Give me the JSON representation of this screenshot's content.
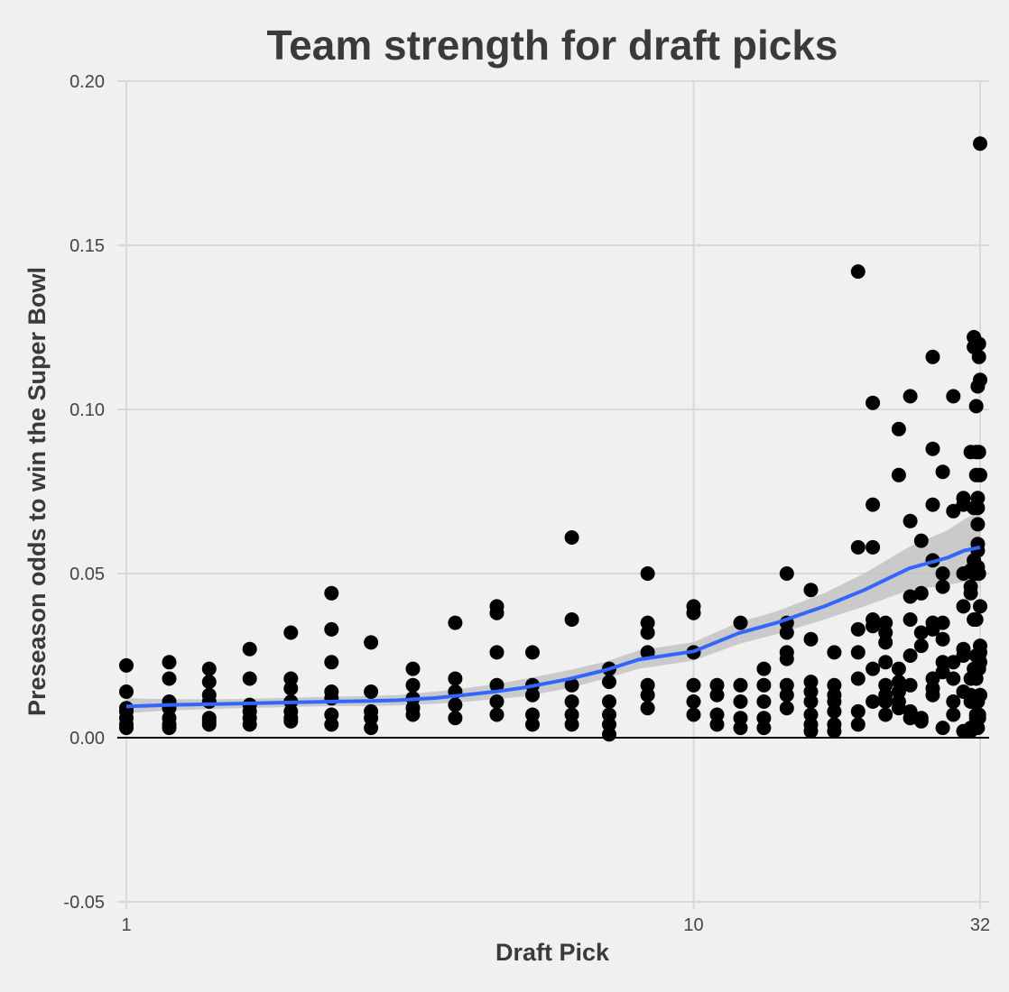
{
  "chart_data": {
    "type": "scatter",
    "title": "Team strength for draft picks",
    "xlabel": "Draft Pick",
    "ylabel": "Preseason odds to win the Super Bowl",
    "x_scale": "log",
    "xlim": [
      1,
      32
    ],
    "ylim": [
      -0.05,
      0.2
    ],
    "x_ticks": [
      1,
      10,
      32
    ],
    "y_ticks": [
      -0.05,
      0.0,
      0.05,
      0.1,
      0.15,
      0.2
    ],
    "y_tick_labels": [
      "-0.05",
      "0.00",
      "0.05",
      "0.10",
      "0.15",
      "0.20"
    ],
    "grid": true,
    "hline_y": 0,
    "colors": {
      "points": "#000000",
      "smooth": "#3366ff",
      "band": "#bdbdbd",
      "background": "#f0f0f0"
    },
    "points": [
      [
        1,
        0.022
      ],
      [
        1,
        0.014
      ],
      [
        1,
        0.009
      ],
      [
        1,
        0.008
      ],
      [
        1,
        0.006
      ],
      [
        1,
        0.004
      ],
      [
        1,
        0.003
      ],
      [
        1.19,
        0.023
      ],
      [
        1.19,
        0.018
      ],
      [
        1.19,
        0.011
      ],
      [
        1.19,
        0.009
      ],
      [
        1.19,
        0.006
      ],
      [
        1.19,
        0.004
      ],
      [
        1.19,
        0.003
      ],
      [
        1.4,
        0.021
      ],
      [
        1.4,
        0.017
      ],
      [
        1.4,
        0.013
      ],
      [
        1.4,
        0.011
      ],
      [
        1.4,
        0.006
      ],
      [
        1.4,
        0.005
      ],
      [
        1.4,
        0.004
      ],
      [
        1.65,
        0.027
      ],
      [
        1.65,
        0.018
      ],
      [
        1.65,
        0.01
      ],
      [
        1.65,
        0.008
      ],
      [
        1.65,
        0.006
      ],
      [
        1.65,
        0.004
      ],
      [
        1.95,
        0.032
      ],
      [
        1.95,
        0.018
      ],
      [
        1.95,
        0.015
      ],
      [
        1.95,
        0.011
      ],
      [
        1.95,
        0.008
      ],
      [
        1.95,
        0.006
      ],
      [
        1.95,
        0.005
      ],
      [
        2.3,
        0.044
      ],
      [
        2.3,
        0.033
      ],
      [
        2.3,
        0.023
      ],
      [
        2.3,
        0.014
      ],
      [
        2.3,
        0.012
      ],
      [
        2.3,
        0.007
      ],
      [
        2.3,
        0.004
      ],
      [
        2.7,
        0.029
      ],
      [
        2.7,
        0.014
      ],
      [
        2.7,
        0.008
      ],
      [
        2.7,
        0.006
      ],
      [
        2.7,
        0.003
      ],
      [
        3.2,
        0.021
      ],
      [
        3.2,
        0.016
      ],
      [
        3.2,
        0.012
      ],
      [
        3.2,
        0.009
      ],
      [
        3.2,
        0.007
      ],
      [
        3.8,
        0.035
      ],
      [
        3.8,
        0.018
      ],
      [
        3.8,
        0.014
      ],
      [
        3.8,
        0.01
      ],
      [
        3.8,
        0.006
      ],
      [
        4.5,
        0.04
      ],
      [
        4.5,
        0.038
      ],
      [
        4.5,
        0.026
      ],
      [
        4.5,
        0.016
      ],
      [
        4.5,
        0.011
      ],
      [
        4.5,
        0.007
      ],
      [
        5.2,
        0.026
      ],
      [
        5.2,
        0.016
      ],
      [
        5.2,
        0.013
      ],
      [
        5.2,
        0.007
      ],
      [
        5.2,
        0.004
      ],
      [
        6.1,
        0.061
      ],
      [
        6.1,
        0.036
      ],
      [
        6.1,
        0.016
      ],
      [
        6.1,
        0.011
      ],
      [
        6.1,
        0.007
      ],
      [
        6.1,
        0.004
      ],
      [
        7.1,
        0.021
      ],
      [
        7.1,
        0.017
      ],
      [
        7.1,
        0.011
      ],
      [
        7.1,
        0.007
      ],
      [
        7.1,
        0.004
      ],
      [
        7.1,
        0.001
      ],
      [
        8.3,
        0.05
      ],
      [
        8.3,
        0.035
      ],
      [
        8.3,
        0.032
      ],
      [
        8.3,
        0.026
      ],
      [
        8.3,
        0.016
      ],
      [
        8.3,
        0.013
      ],
      [
        8.3,
        0.009
      ],
      [
        10,
        0.04
      ],
      [
        10,
        0.038
      ],
      [
        10,
        0.026
      ],
      [
        10,
        0.016
      ],
      [
        10,
        0.011
      ],
      [
        10,
        0.007
      ],
      [
        11,
        0.016
      ],
      [
        11,
        0.013
      ],
      [
        11,
        0.007
      ],
      [
        11,
        0.004
      ],
      [
        12.1,
        0.035
      ],
      [
        12.1,
        0.016
      ],
      [
        12.1,
        0.011
      ],
      [
        12.1,
        0.006
      ],
      [
        12.1,
        0.003
      ],
      [
        13.3,
        0.021
      ],
      [
        13.3,
        0.016
      ],
      [
        13.3,
        0.011
      ],
      [
        13.3,
        0.006
      ],
      [
        13.3,
        0.003
      ],
      [
        14.6,
        0.05
      ],
      [
        14.6,
        0.035
      ],
      [
        14.6,
        0.032
      ],
      [
        14.6,
        0.026
      ],
      [
        14.6,
        0.024
      ],
      [
        14.6,
        0.016
      ],
      [
        14.6,
        0.013
      ],
      [
        14.6,
        0.009
      ],
      [
        16.1,
        0.045
      ],
      [
        16.1,
        0.03
      ],
      [
        16.1,
        0.017
      ],
      [
        16.1,
        0.014
      ],
      [
        16.1,
        0.011
      ],
      [
        16.1,
        0.007
      ],
      [
        16.1,
        0.004
      ],
      [
        16.1,
        0.002
      ],
      [
        17.7,
        0.026
      ],
      [
        17.7,
        0.016
      ],
      [
        17.7,
        0.013
      ],
      [
        17.7,
        0.011
      ],
      [
        17.7,
        0.008
      ],
      [
        17.7,
        0.004
      ],
      [
        17.7,
        0.002
      ],
      [
        19.5,
        0.142
      ],
      [
        19.5,
        0.058
      ],
      [
        19.5,
        0.033
      ],
      [
        19.5,
        0.026
      ],
      [
        19.5,
        0.018
      ],
      [
        19.5,
        0.008
      ],
      [
        19.5,
        0.004
      ],
      [
        20.7,
        0.102
      ],
      [
        20.7,
        0.071
      ],
      [
        20.7,
        0.058
      ],
      [
        20.7,
        0.036
      ],
      [
        20.7,
        0.034
      ],
      [
        20.7,
        0.021
      ],
      [
        20.7,
        0.011
      ],
      [
        21.8,
        0.035
      ],
      [
        21.8,
        0.032
      ],
      [
        21.8,
        0.029
      ],
      [
        21.8,
        0.023
      ],
      [
        21.8,
        0.016
      ],
      [
        21.8,
        0.013
      ],
      [
        21.8,
        0.011
      ],
      [
        21.8,
        0.007
      ],
      [
        23,
        0.094
      ],
      [
        23,
        0.08
      ],
      [
        23,
        0.021
      ],
      [
        23,
        0.017
      ],
      [
        23,
        0.014
      ],
      [
        23,
        0.011
      ],
      [
        23,
        0.009
      ],
      [
        24.1,
        0.104
      ],
      [
        24.1,
        0.066
      ],
      [
        24.1,
        0.043
      ],
      [
        24.1,
        0.036
      ],
      [
        24.1,
        0.025
      ],
      [
        24.1,
        0.016
      ],
      [
        24.1,
        0.008
      ],
      [
        24.1,
        0.006
      ],
      [
        25.2,
        0.06
      ],
      [
        25.2,
        0.044
      ],
      [
        25.2,
        0.032
      ],
      [
        25.2,
        0.028
      ],
      [
        25.2,
        0.006
      ],
      [
        25.2,
        0.005
      ],
      [
        26.4,
        0.116
      ],
      [
        26.4,
        0.088
      ],
      [
        26.4,
        0.071
      ],
      [
        26.4,
        0.054
      ],
      [
        26.4,
        0.035
      ],
      [
        26.4,
        0.033
      ],
      [
        26.4,
        0.018
      ],
      [
        26.4,
        0.015
      ],
      [
        26.4,
        0.013
      ],
      [
        27.5,
        0.081
      ],
      [
        27.5,
        0.05
      ],
      [
        27.5,
        0.046
      ],
      [
        27.5,
        0.035
      ],
      [
        27.5,
        0.03
      ],
      [
        27.5,
        0.023
      ],
      [
        27.5,
        0.02
      ],
      [
        27.5,
        0.003
      ],
      [
        28.7,
        0.104
      ],
      [
        28.7,
        0.069
      ],
      [
        28.7,
        0.023
      ],
      [
        28.7,
        0.018
      ],
      [
        28.7,
        0.011
      ],
      [
        28.7,
        0.007
      ],
      [
        29.9,
        0.073
      ],
      [
        29.9,
        0.071
      ],
      [
        29.9,
        0.05
      ],
      [
        29.9,
        0.04
      ],
      [
        29.9,
        0.027
      ],
      [
        29.9,
        0.025
      ],
      [
        29.9,
        0.014
      ],
      [
        29.9,
        0.002
      ],
      [
        30.8,
        0.087
      ],
      [
        30.8,
        0.051
      ],
      [
        30.8,
        0.046
      ],
      [
        30.8,
        0.044
      ],
      [
        30.8,
        0.018
      ],
      [
        30.8,
        0.013
      ],
      [
        30.8,
        0.011
      ],
      [
        30.8,
        0.003
      ],
      [
        30.8,
        0.002
      ],
      [
        31.2,
        0.122
      ],
      [
        31.2,
        0.119
      ],
      [
        31.2,
        0.07
      ],
      [
        31.2,
        0.054
      ],
      [
        31.2,
        0.05
      ],
      [
        31.2,
        0.036
      ],
      [
        31.2,
        0.021
      ],
      [
        31.2,
        0.011
      ],
      [
        31.2,
        0.003
      ],
      [
        31.5,
        0.101
      ],
      [
        31.5,
        0.087
      ],
      [
        31.5,
        0.08
      ],
      [
        31.5,
        0.05
      ],
      [
        31.5,
        0.036
      ],
      [
        31.5,
        0.025
      ],
      [
        31.5,
        0.018
      ],
      [
        31.5,
        0.007
      ],
      [
        31.5,
        0.006
      ],
      [
        31.7,
        0.107
      ],
      [
        31.7,
        0.073
      ],
      [
        31.7,
        0.07
      ],
      [
        31.7,
        0.065
      ],
      [
        31.7,
        0.059
      ],
      [
        31.7,
        0.057
      ],
      [
        31.7,
        0.052
      ],
      [
        31.7,
        0.011
      ],
      [
        31.7,
        0.003
      ],
      [
        31.85,
        0.12
      ],
      [
        31.85,
        0.116
      ],
      [
        31.85,
        0.087
      ],
      [
        31.85,
        0.05
      ],
      [
        31.85,
        0.025
      ],
      [
        31.85,
        0.024
      ],
      [
        31.85,
        0.021
      ],
      [
        31.85,
        0.007
      ],
      [
        31.85,
        0.006
      ],
      [
        32,
        0.181
      ],
      [
        32,
        0.109
      ],
      [
        32,
        0.08
      ],
      [
        32,
        0.04
      ],
      [
        32,
        0.028
      ],
      [
        32,
        0.026
      ],
      [
        32,
        0.023
      ],
      [
        32,
        0.013
      ]
    ],
    "smooth": {
      "x": [
        1,
        1.2,
        1.4,
        1.6,
        1.8,
        2,
        2.3,
        2.7,
        3,
        3.5,
        4,
        4.5,
        5,
        6,
        7,
        8,
        10,
        12,
        14,
        17,
        20,
        24,
        28,
        30,
        32
      ],
      "y": [
        0.0095,
        0.01,
        0.0102,
        0.0104,
        0.0106,
        0.0108,
        0.011,
        0.0112,
        0.0114,
        0.0121,
        0.0131,
        0.0141,
        0.0152,
        0.0178,
        0.0206,
        0.0238,
        0.0263,
        0.0318,
        0.035,
        0.04,
        0.045,
        0.0516,
        0.0548,
        0.057,
        0.058
      ],
      "lower": [
        0.0075,
        0.0083,
        0.0087,
        0.009,
        0.0092,
        0.0094,
        0.0096,
        0.0097,
        0.0098,
        0.0103,
        0.011,
        0.0118,
        0.0125,
        0.015,
        0.018,
        0.021,
        0.0235,
        0.0285,
        0.0315,
        0.036,
        0.04,
        0.045,
        0.0465,
        0.0475,
        0.047
      ],
      "upper": [
        0.012,
        0.0117,
        0.0117,
        0.0118,
        0.012,
        0.0122,
        0.0125,
        0.0127,
        0.013,
        0.014,
        0.0152,
        0.0164,
        0.0178,
        0.0205,
        0.0232,
        0.0266,
        0.0291,
        0.0351,
        0.0385,
        0.044,
        0.05,
        0.0582,
        0.0631,
        0.0665,
        0.069
      ]
    }
  }
}
